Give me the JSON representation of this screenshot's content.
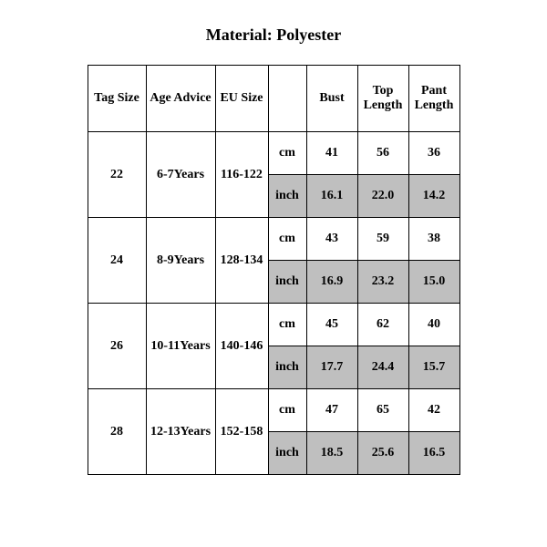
{
  "title": "Material: Polyester",
  "columns": {
    "tag": "Tag Size",
    "age": "Age Advice",
    "eu": "EU Size",
    "unit": "",
    "bust": "Bust",
    "top": "Top Length",
    "pant": "Pant Length"
  },
  "units": {
    "cm": "cm",
    "inch": "inch"
  },
  "rows": [
    {
      "tag": "22",
      "age": "6-7Years",
      "eu": "116-122",
      "cm": {
        "bust": "41",
        "top": "56",
        "pant": "36"
      },
      "inch": {
        "bust": "16.1",
        "top": "22.0",
        "pant": "14.2"
      }
    },
    {
      "tag": "24",
      "age": "8-9Years",
      "eu": "128-134",
      "cm": {
        "bust": "43",
        "top": "59",
        "pant": "38"
      },
      "inch": {
        "bust": "16.9",
        "top": "23.2",
        "pant": "15.0"
      }
    },
    {
      "tag": "26",
      "age": "10-11Years",
      "eu": "140-146",
      "cm": {
        "bust": "45",
        "top": "62",
        "pant": "40"
      },
      "inch": {
        "bust": "17.7",
        "top": "24.4",
        "pant": "15.7"
      }
    },
    {
      "tag": "28",
      "age": "12-13Years",
      "eu": "152-158",
      "cm": {
        "bust": "47",
        "top": "65",
        "pant": "42"
      },
      "inch": {
        "bust": "18.5",
        "top": "25.6",
        "pant": "16.5"
      }
    }
  ],
  "style": {
    "background_color": "#ffffff",
    "text_color": "#000000",
    "shade_color": "#bfbfbf",
    "border_color": "#000000",
    "title_fontsize": 18,
    "cell_fontsize": 14,
    "font_family": "Times New Roman"
  }
}
